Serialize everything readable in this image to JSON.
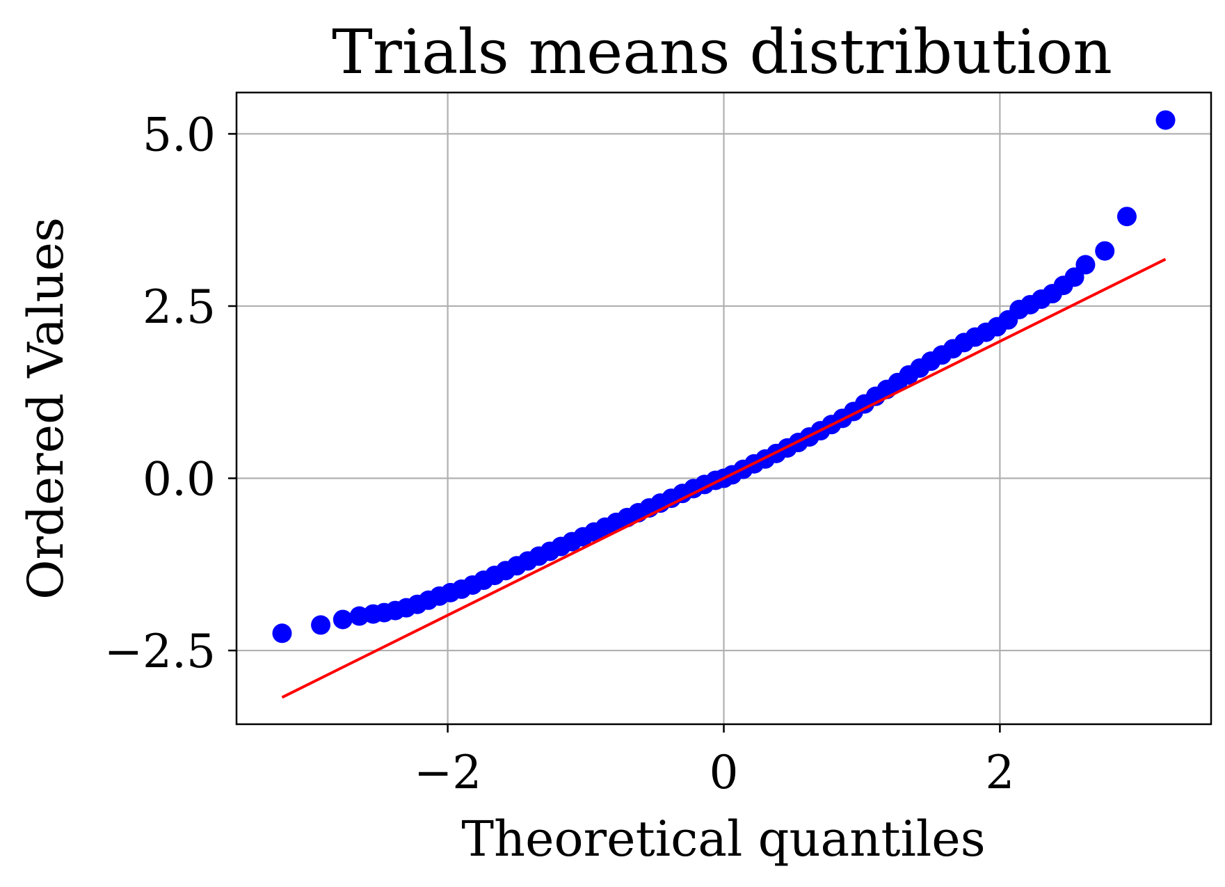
{
  "chart_data": {
    "type": "scatter",
    "title": "Trials means distribution",
    "xlabel": "Theoretical quantiles",
    "ylabel": "Ordered Values",
    "xlim": [
      -3.53,
      3.53
    ],
    "ylim": [
      -3.57,
      5.6
    ],
    "xticks": [
      -2,
      0,
      2
    ],
    "xtick_labels": [
      "−2",
      "0",
      "2"
    ],
    "yticks": [
      -2.5,
      0.0,
      2.5,
      5.0
    ],
    "ytick_labels": [
      "−2.5",
      "0.0",
      "2.5",
      "5.0"
    ],
    "grid": true,
    "legend": "none",
    "colors": {
      "points": "#0000ff",
      "fit_line": "#ff0000",
      "grid": "#b0b0b0"
    },
    "series": [
      {
        "kind": "points",
        "x": [
          -3.2,
          -2.92,
          -2.76,
          -2.64,
          -2.54,
          -2.46,
          -2.38,
          -2.3,
          -2.22,
          -2.14,
          -2.06,
          -1.98,
          -1.9,
          -1.82,
          -1.74,
          -1.66,
          -1.58,
          -1.5,
          -1.42,
          -1.34,
          -1.26,
          -1.18,
          -1.1,
          -1.02,
          -0.94,
          -0.86,
          -0.78,
          -0.7,
          -0.62,
          -0.54,
          -0.46,
          -0.38,
          -0.3,
          -0.22,
          -0.14,
          -0.06,
          0.0,
          0.06,
          0.14,
          0.22,
          0.3,
          0.38,
          0.46,
          0.54,
          0.62,
          0.7,
          0.78,
          0.86,
          0.94,
          1.02,
          1.1,
          1.18,
          1.26,
          1.34,
          1.42,
          1.5,
          1.58,
          1.66,
          1.74,
          1.82,
          1.9,
          1.98,
          2.06,
          2.14,
          2.22,
          2.3,
          2.38,
          2.46,
          2.54,
          2.62,
          2.76,
          2.92,
          3.2
        ],
        "y": [
          -2.25,
          -2.13,
          -2.05,
          -2.0,
          -1.97,
          -1.95,
          -1.92,
          -1.88,
          -1.83,
          -1.77,
          -1.71,
          -1.66,
          -1.61,
          -1.55,
          -1.48,
          -1.41,
          -1.34,
          -1.27,
          -1.2,
          -1.13,
          -1.06,
          -0.99,
          -0.92,
          -0.85,
          -0.78,
          -0.71,
          -0.64,
          -0.57,
          -0.5,
          -0.43,
          -0.36,
          -0.29,
          -0.22,
          -0.15,
          -0.09,
          -0.03,
          0.0,
          0.05,
          0.13,
          0.21,
          0.28,
          0.36,
          0.44,
          0.52,
          0.6,
          0.69,
          0.78,
          0.87,
          0.97,
          1.08,
          1.19,
          1.29,
          1.39,
          1.5,
          1.6,
          1.7,
          1.79,
          1.88,
          1.97,
          2.05,
          2.12,
          2.2,
          2.3,
          2.45,
          2.52,
          2.6,
          2.68,
          2.8,
          2.92,
          3.1,
          3.3,
          3.8,
          5.2
        ]
      },
      {
        "kind": "line",
        "x": [
          -3.2,
          3.2
        ],
        "y": [
          -3.18,
          3.18
        ]
      }
    ]
  }
}
